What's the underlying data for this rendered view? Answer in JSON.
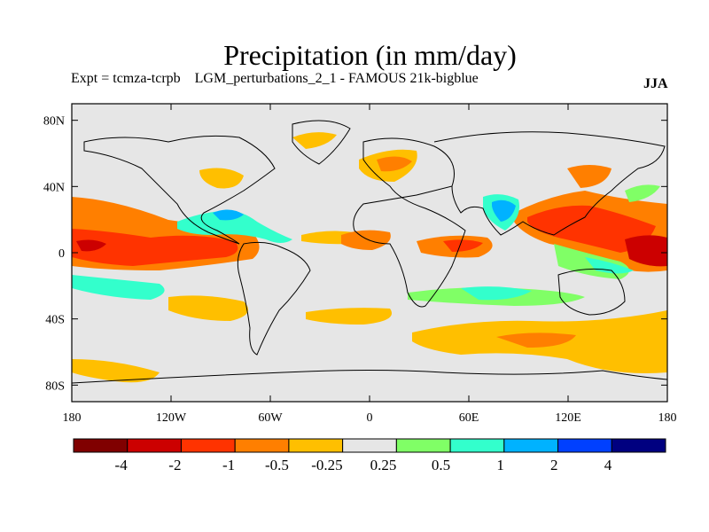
{
  "header": {
    "title": "Precipitation (in mm/day)",
    "subtitle": "Expt = tcmza-tcrpb    LGM_perturbations_2_1 - FAMOUS 21k-bigblue",
    "season": "JJA"
  },
  "map": {
    "lon_range": [
      -180,
      180
    ],
    "lat_range": [
      -90,
      90
    ],
    "background_color": "#e6e6e6",
    "lat_ticks": [
      {
        "value": 80,
        "label": "80N"
      },
      {
        "value": 40,
        "label": "40N"
      },
      {
        "value": 0,
        "label": "0"
      },
      {
        "value": -40,
        "label": "40S"
      },
      {
        "value": -80,
        "label": "80S"
      }
    ],
    "lon_ticks": [
      {
        "value": -180,
        "label": "180"
      },
      {
        "value": -120,
        "label": "120W"
      },
      {
        "value": -60,
        "label": "60W"
      },
      {
        "value": 0,
        "label": "0"
      },
      {
        "value": 60,
        "label": "60E"
      },
      {
        "value": 120,
        "label": "120E"
      },
      {
        "value": 180,
        "label": "180"
      }
    ]
  },
  "colorbar": {
    "colors": [
      "#800000",
      "#cc0000",
      "#ff3300",
      "#ff7f00",
      "#ffbf00",
      "#e6e6e6",
      "#80ff66",
      "#33ffcc",
      "#00b2ff",
      "#0040ff",
      "#000080"
    ],
    "labels": [
      "-4",
      "-2",
      "-1",
      "-0.5",
      "-0.25",
      "0.25",
      "0.5",
      "1",
      "2",
      "4"
    ]
  }
}
